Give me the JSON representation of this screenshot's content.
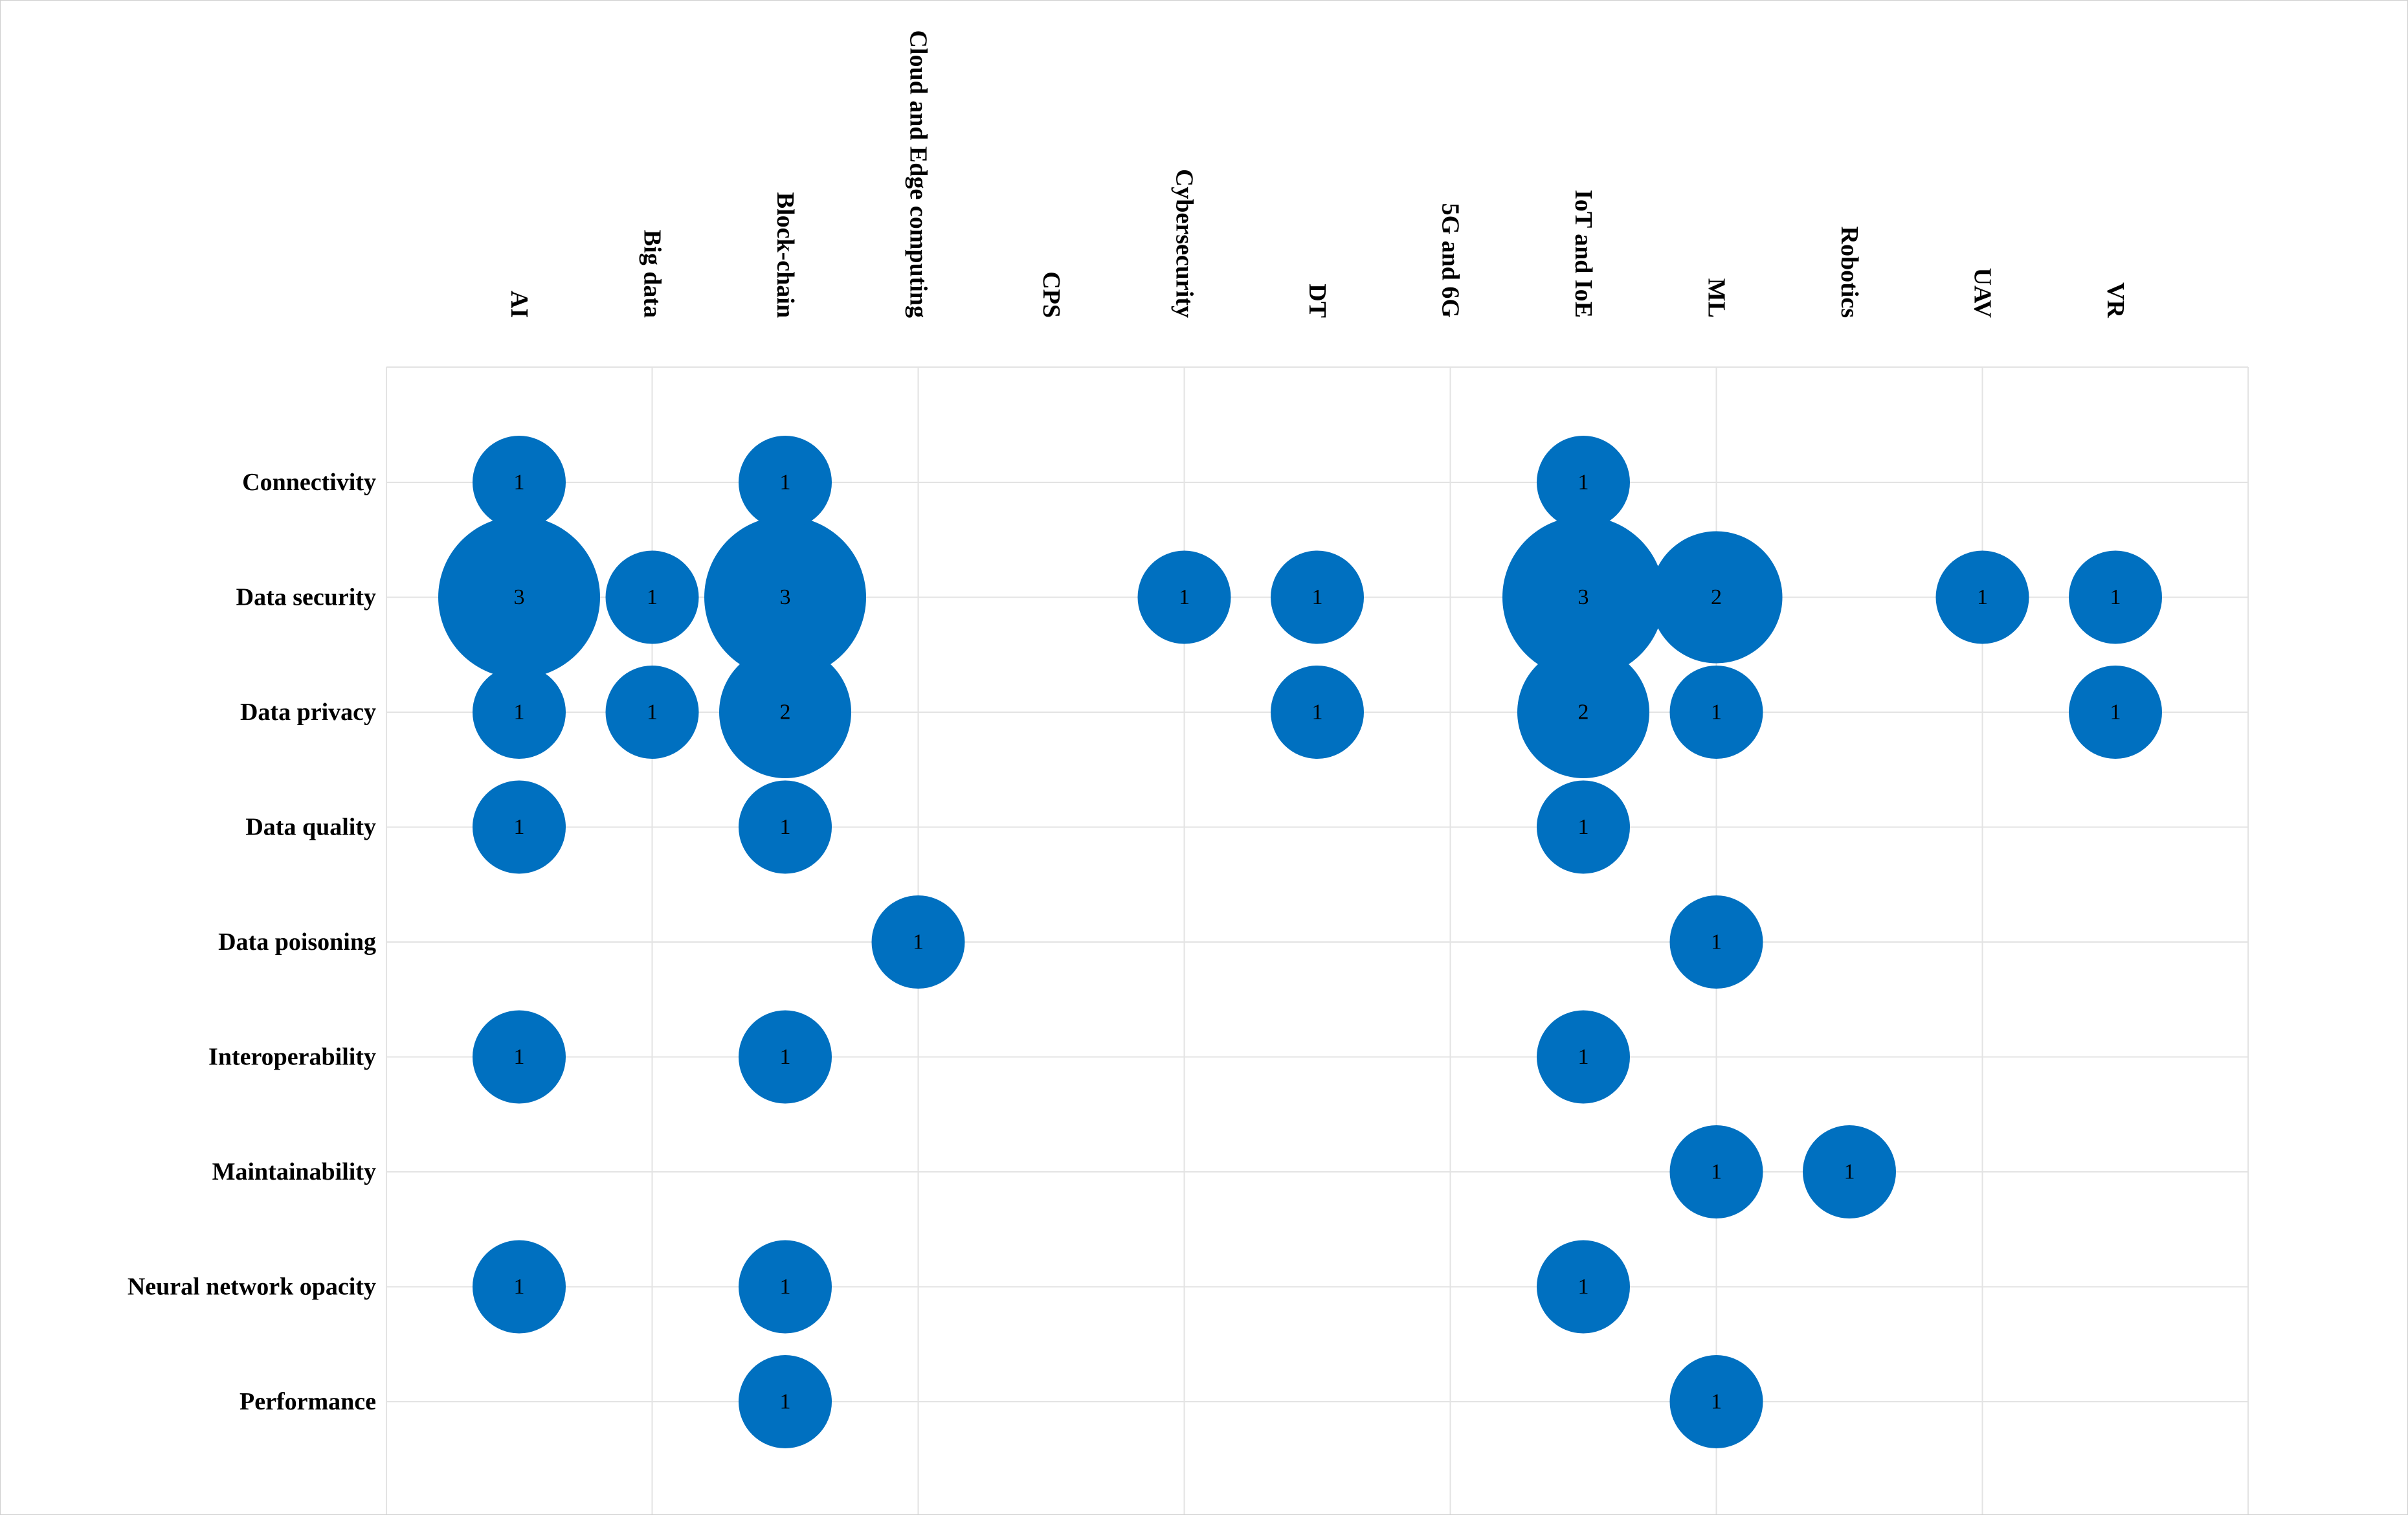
{
  "chart_data": {
    "type": "bubble-matrix",
    "title": "",
    "columns": [
      "AI",
      "Big data",
      "Block-chain",
      "Cloud and Edge computing",
      "CPS",
      "Cybersecurity",
      "DT",
      "5G and 6G",
      "IoT and IoE",
      "ML",
      "Robotics",
      "UAV",
      "VR"
    ],
    "rows": [
      "Connectivity",
      "Data security",
      "Data privacy",
      "Data quality",
      "Data poisoning",
      "Interoperability",
      "Maintainability",
      "Neural network opacity",
      "Performance"
    ],
    "points": [
      {
        "row": "Connectivity",
        "col": "AI",
        "value": 1
      },
      {
        "row": "Connectivity",
        "col": "Block-chain",
        "value": 1
      },
      {
        "row": "Connectivity",
        "col": "IoT and IoE",
        "value": 1
      },
      {
        "row": "Data security",
        "col": "AI",
        "value": 3
      },
      {
        "row": "Data security",
        "col": "Big data",
        "value": 1
      },
      {
        "row": "Data security",
        "col": "Block-chain",
        "value": 3
      },
      {
        "row": "Data security",
        "col": "Cybersecurity",
        "value": 1
      },
      {
        "row": "Data security",
        "col": "DT",
        "value": 1
      },
      {
        "row": "Data security",
        "col": "IoT and IoE",
        "value": 3
      },
      {
        "row": "Data security",
        "col": "ML",
        "value": 2
      },
      {
        "row": "Data security",
        "col": "UAV",
        "value": 1
      },
      {
        "row": "Data security",
        "col": "VR",
        "value": 1
      },
      {
        "row": "Data privacy",
        "col": "AI",
        "value": 1
      },
      {
        "row": "Data privacy",
        "col": "Big data",
        "value": 1
      },
      {
        "row": "Data privacy",
        "col": "Block-chain",
        "value": 2
      },
      {
        "row": "Data privacy",
        "col": "DT",
        "value": 1
      },
      {
        "row": "Data privacy",
        "col": "IoT and IoE",
        "value": 2
      },
      {
        "row": "Data privacy",
        "col": "ML",
        "value": 1
      },
      {
        "row": "Data privacy",
        "col": "VR",
        "value": 1
      },
      {
        "row": "Data quality",
        "col": "AI",
        "value": 1
      },
      {
        "row": "Data quality",
        "col": "Block-chain",
        "value": 1
      },
      {
        "row": "Data quality",
        "col": "IoT and IoE",
        "value": 1
      },
      {
        "row": "Data poisoning",
        "col": "Cloud and Edge computing",
        "value": 1
      },
      {
        "row": "Data poisoning",
        "col": "ML",
        "value": 1
      },
      {
        "row": "Interoperability",
        "col": "AI",
        "value": 1
      },
      {
        "row": "Interoperability",
        "col": "Block-chain",
        "value": 1
      },
      {
        "row": "Interoperability",
        "col": "IoT and IoE",
        "value": 1
      },
      {
        "row": "Maintainability",
        "col": "ML",
        "value": 1
      },
      {
        "row": "Maintainability",
        "col": "Robotics",
        "value": 1
      },
      {
        "row": "Neural network opacity",
        "col": "AI",
        "value": 1
      },
      {
        "row": "Neural network opacity",
        "col": "Block-chain",
        "value": 1
      },
      {
        "row": "Neural network opacity",
        "col": "IoT and IoE",
        "value": 1
      },
      {
        "row": "Performance",
        "col": "Block-chain",
        "value": 1
      },
      {
        "row": "Performance",
        "col": "ML",
        "value": 1
      }
    ],
    "bubble_color": "#0070C0",
    "grid": true
  }
}
